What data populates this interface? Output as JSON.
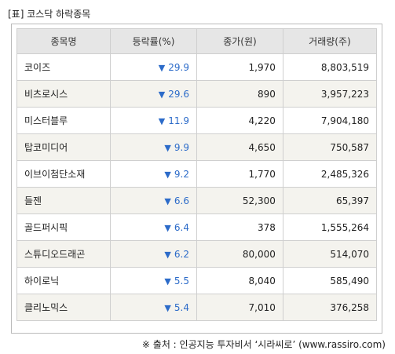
{
  "title": "[표] 코스닥 하락종목",
  "columns": [
    "종목명",
    "등락률(%)",
    "종가(원)",
    "거래량(주)"
  ],
  "down_arrow": "▼",
  "rows": [
    {
      "name": "코이즈",
      "change": "29.9",
      "close": "1,970",
      "volume": "8,803,519"
    },
    {
      "name": "비츠로시스",
      "change": "29.6",
      "close": "890",
      "volume": "3,957,223"
    },
    {
      "name": "미스터블루",
      "change": "11.9",
      "close": "4,220",
      "volume": "7,904,180"
    },
    {
      "name": "탑코미디어",
      "change": "9.9",
      "close": "4,650",
      "volume": "750,587"
    },
    {
      "name": "이브이첨단소재",
      "change": "9.2",
      "close": "1,770",
      "volume": "2,485,326"
    },
    {
      "name": "들젠",
      "change": "6.6",
      "close": "52,300",
      "volume": "65,397"
    },
    {
      "name": "골드퍼시픽",
      "change": "6.4",
      "close": "378",
      "volume": "1,555,264"
    },
    {
      "name": "스튜디오드래곤",
      "change": "6.2",
      "close": "80,000",
      "volume": "514,070"
    },
    {
      "name": "하이로닉",
      "change": "5.5",
      "close": "8,040",
      "volume": "585,490"
    },
    {
      "name": "클리노믹스",
      "change": "5.4",
      "close": "7,010",
      "volume": "376,258"
    }
  ],
  "source": "※ 출처 : 인공지능 투자비서 ‘시라씨로’ (www.rassiro.com)",
  "colors": {
    "down": "#2c6bc9",
    "header_bg": "#e6e6e6",
    "stripe_bg": "#f4f3ee"
  }
}
